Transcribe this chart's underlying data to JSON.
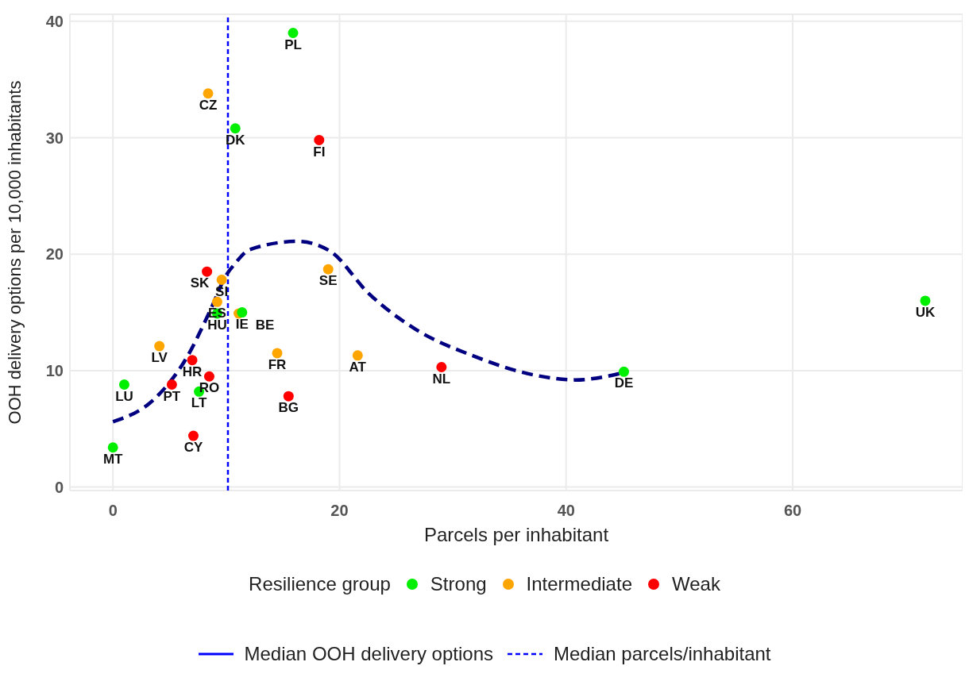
{
  "chart_data": {
    "type": "scatter",
    "xlabel": "Parcels per inhabitant",
    "ylabel": "OOH delivery options per 10,000 inhabitants",
    "legend_title": "Resilience group",
    "xlim": [
      -3.8,
      75
    ],
    "xticks": [
      0,
      20,
      40,
      60
    ],
    "ylim": [
      -0.3,
      40.6
    ],
    "yticks": [
      0,
      10,
      20,
      30,
      40
    ],
    "grid": true,
    "legend": "bottom",
    "marker": "circle",
    "series": [
      {
        "name": "Strong",
        "color": "#00ee00",
        "x": [
          0,
          1.0,
          7.6,
          9.2,
          11.4,
          10.8,
          15.9,
          45.1,
          71.7
        ],
        "values": [
          3.4,
          8.8,
          8.2,
          14.9,
          15.0,
          30.8,
          39.0,
          9.9,
          16.0
        ]
      },
      {
        "name": "Intermediate",
        "color": "#ffa500",
        "x": [
          4.1,
          9.6,
          9.2,
          11.1,
          8.4,
          19.0,
          14.5,
          21.6
        ],
        "values": [
          12.1,
          17.8,
          15.9,
          14.9,
          33.8,
          18.7,
          11.5,
          11.3
        ]
      },
      {
        "name": "Weak",
        "color": "#ff0000",
        "x": [
          5.2,
          7.0,
          7.1,
          8.5,
          8.3,
          18.2,
          15.5,
          29.0
        ],
        "values": [
          8.8,
          10.9,
          4.4,
          9.5,
          18.5,
          29.8,
          7.8,
          10.3
        ]
      },
      {
        "type": "line",
        "color": "#000080",
        "line_style": "dashed",
        "marker": "none",
        "x": [
          0,
          3.7,
          6.5,
          8.6,
          10,
          10.7,
          12.1,
          16.3,
          19.1,
          22.6,
          26.8,
          31.7,
          37.3,
          40.8,
          45
        ],
        "values": [
          5.6,
          7.6,
          11.1,
          15.2,
          18.2,
          19.1,
          20.4,
          21.1,
          20.3,
          16.6,
          13.5,
          11.3,
          9.6,
          9.2,
          9.8
        ]
      }
    ],
    "ref_lines": [
      {
        "axis": "y",
        "label": "Median OOH delivery options",
        "color": "#0000ff",
        "line_style": "solid"
      },
      {
        "axis": "x",
        "value": 10.15,
        "label": "Median parcels/inhabitant",
        "color": "#0000ff",
        "line_style": "dashed"
      }
    ],
    "annotations": [
      {
        "text": "MT",
        "x": 0,
        "y": 3.4
      },
      {
        "text": "LU",
        "x": 1.0,
        "y": 8.8
      },
      {
        "text": "LT",
        "x": 7.6,
        "y": 8.2
      },
      {
        "text": "HU",
        "x": 9.2,
        "y": 14.9
      },
      {
        "text": "IE",
        "x": 11.4,
        "y": 15.0
      },
      {
        "text": "DK",
        "x": 10.8,
        "y": 30.8
      },
      {
        "text": "PL",
        "x": 15.9,
        "y": 39.0
      },
      {
        "text": "DE",
        "x": 45.1,
        "y": 9.9
      },
      {
        "text": "UK",
        "x": 71.7,
        "y": 16.0
      },
      {
        "text": "LV",
        "x": 4.1,
        "y": 12.1
      },
      {
        "text": "SI",
        "x": 9.6,
        "y": 17.8
      },
      {
        "text": "ES",
        "x": 9.2,
        "y": 15.9
      },
      {
        "text": "BE",
        "x": 11.1,
        "y": 14.9
      },
      {
        "text": "CZ",
        "x": 8.4,
        "y": 33.8
      },
      {
        "text": "SE",
        "x": 19.0,
        "y": 18.7
      },
      {
        "text": "FR",
        "x": 14.5,
        "y": 11.5
      },
      {
        "text": "AT",
        "x": 21.6,
        "y": 11.3
      },
      {
        "text": "PT",
        "x": 5.2,
        "y": 8.8
      },
      {
        "text": "HR",
        "x": 7.0,
        "y": 10.9
      },
      {
        "text": "CY",
        "x": 7.1,
        "y": 4.4
      },
      {
        "text": "RO",
        "x": 8.5,
        "y": 9.5
      },
      {
        "text": "SK",
        "x": 8.3,
        "y": 18.5
      },
      {
        "text": "FI",
        "x": 18.2,
        "y": 29.8
      },
      {
        "text": "BG",
        "x": 15.5,
        "y": 7.8
      },
      {
        "text": "NL",
        "x": 29.0,
        "y": 10.3
      }
    ]
  }
}
